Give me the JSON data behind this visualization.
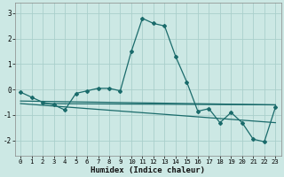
{
  "xlabel": "Humidex (Indice chaleur)",
  "ylabel": "",
  "xlim": [
    -0.5,
    23.5
  ],
  "ylim": [
    -2.6,
    3.4
  ],
  "yticks": [
    -2,
    -1,
    0,
    1,
    2,
    3
  ],
  "xticks": [
    0,
    1,
    2,
    3,
    4,
    5,
    6,
    7,
    8,
    9,
    10,
    11,
    12,
    13,
    14,
    15,
    16,
    17,
    18,
    19,
    20,
    21,
    22,
    23
  ],
  "bg_color": "#cce8e4",
  "line_color": "#1a6b6b",
  "grid_color": "#aacfcb",
  "series1_x": [
    0,
    1,
    2,
    3,
    4,
    5,
    6,
    7,
    8,
    9,
    10,
    11,
    12,
    13,
    14,
    15,
    16,
    17,
    18,
    19,
    20,
    21,
    22,
    23
  ],
  "series1_y": [
    -0.1,
    -0.3,
    -0.5,
    -0.6,
    -0.8,
    -0.15,
    -0.05,
    0.05,
    0.05,
    -0.05,
    1.5,
    2.8,
    2.6,
    2.5,
    1.3,
    0.3,
    -0.85,
    -0.75,
    -1.3,
    -0.9,
    -1.3,
    -1.95,
    -2.05,
    -0.7
  ],
  "series2_x": [
    0,
    23
  ],
  "series2_y": [
    -0.45,
    -0.6
  ],
  "series3_x": [
    0,
    23
  ],
  "series3_y": [
    -0.55,
    -1.3
  ],
  "series4_x": [
    2,
    23
  ],
  "series4_y": [
    -0.55,
    -0.6
  ]
}
